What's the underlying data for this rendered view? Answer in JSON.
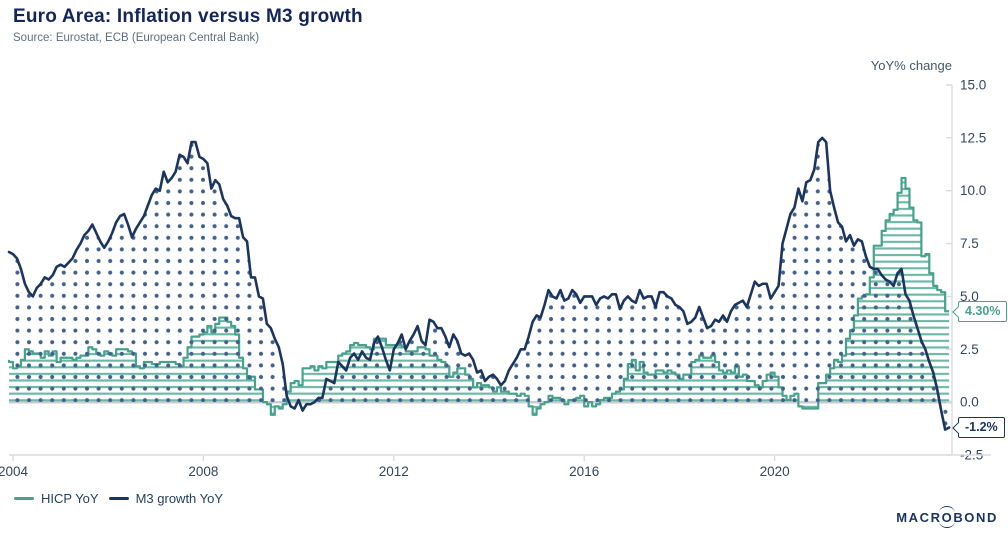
{
  "header": {
    "title": "Euro Area: Inflation versus M3 growth",
    "source": "Source: Eurostat, ECB (European Central Bank)"
  },
  "axis": {
    "unit_label": "YoY% change"
  },
  "logo": {
    "left": "MACR",
    "o": "O",
    "right": "BOND"
  },
  "colors": {
    "navy": "#1b3561",
    "navy_dots": "#44618c",
    "teal": "#47a28c",
    "teal_lines": "#6cb8a6",
    "axis_line": "#d9dcdf",
    "zero_line": "#c9ccd0",
    "tick_text": "#35465c"
  },
  "chart_data": {
    "type": "area",
    "title": "Euro Area: Inflation versus M3 growth",
    "xlabel": "",
    "ylabel": "YoY% change",
    "ylim": [
      -2.5,
      15.0
    ],
    "grid": false,
    "legend_position": "bottom-left",
    "x_start": "2003-12",
    "frequency": "monthly",
    "x_ticks": [
      {
        "label": "2004",
        "year": 2004
      },
      {
        "label": "2008",
        "year": 2008
      },
      {
        "label": "2012",
        "year": 2012
      },
      {
        "label": "2016",
        "year": 2016
      },
      {
        "label": "2020",
        "year": 2020
      }
    ],
    "y_ticks": [
      {
        "label": "15.0",
        "value": 15.0
      },
      {
        "label": "12.5",
        "value": 12.5
      },
      {
        "label": "10.0",
        "value": 10.0
      },
      {
        "label": "7.5",
        "value": 7.5
      },
      {
        "label": "5.0",
        "value": 5.0
      },
      {
        "label": "2.5",
        "value": 2.5
      },
      {
        "label": "0.0",
        "value": 0.0
      },
      {
        "label": "-2.5",
        "value": -2.5
      }
    ],
    "series": [
      {
        "name": "HICP YoY",
        "color": "#47a28c",
        "fill_pattern": "horizontal-lines",
        "pattern_color": "#6cb8a6",
        "interpolation": "step",
        "last_value_label": "4.30%",
        "values": [
          2.0,
          1.9,
          1.6,
          1.7,
          2.0,
          2.5,
          2.4,
          2.3,
          2.3,
          2.1,
          2.4,
          2.2,
          2.4,
          1.9,
          2.1,
          2.1,
          2.1,
          2.0,
          2.1,
          2.2,
          2.2,
          2.6,
          2.5,
          2.3,
          2.2,
          2.4,
          2.3,
          2.2,
          2.5,
          2.5,
          2.5,
          2.4,
          2.3,
          1.7,
          1.6,
          1.9,
          1.9,
          1.8,
          1.8,
          1.9,
          1.9,
          1.9,
          1.9,
          1.8,
          1.7,
          2.1,
          2.6,
          3.1,
          3.1,
          3.2,
          3.3,
          3.6,
          3.3,
          3.7,
          4.0,
          4.0,
          3.8,
          3.6,
          3.2,
          2.1,
          1.6,
          1.1,
          1.2,
          0.6,
          0.6,
          0.0,
          -0.1,
          -0.6,
          -0.2,
          -0.3,
          -0.1,
          0.5,
          0.9,
          1.0,
          0.8,
          1.6,
          1.6,
          1.7,
          1.5,
          1.7,
          1.6,
          1.9,
          1.9,
          1.9,
          2.2,
          2.3,
          2.4,
          2.7,
          2.8,
          2.7,
          2.7,
          2.6,
          2.5,
          3.0,
          3.0,
          3.0,
          2.7,
          2.7,
          2.7,
          2.7,
          2.6,
          2.4,
          2.4,
          2.4,
          2.6,
          2.6,
          2.5,
          2.2,
          2.2,
          2.0,
          1.9,
          1.7,
          1.2,
          1.4,
          1.6,
          1.6,
          1.3,
          1.1,
          0.7,
          0.9,
          0.8,
          0.8,
          0.7,
          0.5,
          0.7,
          0.5,
          0.5,
          0.4,
          0.4,
          0.3,
          0.4,
          0.3,
          -0.2,
          -0.6,
          -0.3,
          -0.1,
          0.0,
          0.3,
          0.2,
          0.2,
          0.1,
          -0.1,
          0.1,
          0.1,
          0.2,
          0.3,
          -0.2,
          0.0,
          -0.2,
          -0.1,
          0.1,
          0.2,
          0.2,
          0.4,
          0.5,
          0.6,
          1.1,
          1.8,
          2.0,
          1.5,
          1.9,
          1.4,
          1.3,
          1.3,
          1.5,
          1.5,
          1.4,
          1.5,
          1.4,
          1.3,
          1.1,
          1.3,
          1.3,
          1.9,
          2.0,
          2.2,
          2.1,
          2.1,
          2.2,
          1.9,
          1.5,
          1.4,
          1.5,
          1.4,
          1.7,
          1.2,
          1.3,
          1.0,
          1.0,
          0.8,
          0.7,
          1.0,
          1.3,
          1.4,
          1.2,
          0.7,
          0.3,
          0.1,
          0.3,
          0.4,
          -0.2,
          -0.3,
          -0.3,
          -0.3,
          -0.3,
          0.9,
          0.9,
          1.3,
          1.6,
          2.0,
          1.9,
          2.2,
          3.0,
          3.4,
          4.1,
          4.9,
          5.0,
          5.1,
          5.9,
          7.4,
          7.4,
          8.1,
          8.6,
          8.9,
          9.1,
          9.9,
          10.6,
          10.1,
          9.2,
          8.6,
          8.5,
          6.9,
          7.0,
          6.1,
          5.5,
          5.3,
          5.2,
          4.3
        ]
      },
      {
        "name": "M3 growth YoY",
        "color": "#1b3561",
        "fill_pattern": "dots",
        "pattern_color": "#44618c",
        "interpolation": "linear",
        "last_value_label": "-1.2%",
        "values": [
          7.1,
          7.0,
          6.8,
          6.3,
          5.6,
          5.2,
          5.0,
          5.4,
          5.6,
          5.9,
          5.8,
          6.0,
          6.4,
          6.5,
          6.4,
          6.6,
          6.8,
          7.2,
          7.5,
          7.9,
          8.1,
          8.4,
          8.0,
          7.6,
          7.3,
          7.6,
          8.0,
          8.5,
          8.8,
          8.9,
          8.4,
          7.8,
          8.2,
          8.5,
          8.8,
          9.3,
          9.8,
          10.1,
          10.0,
          10.9,
          10.4,
          10.6,
          10.9,
          11.7,
          11.6,
          11.3,
          12.3,
          12.3,
          11.6,
          11.5,
          11.3,
          10.1,
          10.5,
          10.3,
          9.6,
          9.3,
          8.8,
          8.7,
          8.7,
          7.8,
          7.6,
          5.9,
          5.9,
          5.0,
          4.9,
          3.7,
          3.5,
          3.0,
          2.6,
          1.8,
          0.3,
          -0.2,
          -0.3,
          0.1,
          -0.4,
          -0.1,
          -0.1,
          0.0,
          0.2,
          0.2,
          1.1,
          1.0,
          0.9,
          1.9,
          1.7,
          1.5,
          2.1,
          2.3,
          2.0,
          2.4,
          2.1,
          2.0,
          2.8,
          3.1,
          2.6,
          2.0,
          1.5,
          2.5,
          2.8,
          3.2,
          2.5,
          2.9,
          3.2,
          3.6,
          2.9,
          2.7,
          3.9,
          3.8,
          3.5,
          3.5,
          3.1,
          2.6,
          3.2,
          2.9,
          2.3,
          2.2,
          2.3,
          2.0,
          1.4,
          1.5,
          1.0,
          1.2,
          1.3,
          1.1,
          0.8,
          1.0,
          1.5,
          1.8,
          2.1,
          2.5,
          2.5,
          3.1,
          3.8,
          4.1,
          4.0,
          4.6,
          5.3,
          5.0,
          4.9,
          5.3,
          4.8,
          4.9,
          5.3,
          5.1,
          4.7,
          5.0,
          5.0,
          5.0,
          4.6,
          4.9,
          5.0,
          4.9,
          5.1,
          5.1,
          4.4,
          4.8,
          5.0,
          4.8,
          4.7,
          5.3,
          4.9,
          5.0,
          5.0,
          4.5,
          5.2,
          5.2,
          5.0,
          4.9,
          4.6,
          4.5,
          4.3,
          3.7,
          3.8,
          4.0,
          4.5,
          4.0,
          3.5,
          3.6,
          3.9,
          3.8,
          4.1,
          3.8,
          4.3,
          4.6,
          4.7,
          4.8,
          4.5,
          5.1,
          5.7,
          5.5,
          5.6,
          5.6,
          4.9,
          5.2,
          5.5,
          7.5,
          8.2,
          8.9,
          9.2,
          10.1,
          9.5,
          10.4,
          10.5,
          11.0,
          12.3,
          12.5,
          12.3,
          10.0,
          9.2,
          8.5,
          8.3,
          7.6,
          7.9,
          7.4,
          7.7,
          7.6,
          6.9,
          6.4,
          6.3,
          6.3,
          6.0,
          5.8,
          5.7,
          5.5,
          6.1,
          6.3,
          5.1,
          4.8,
          4.1,
          3.5,
          2.9,
          2.5,
          1.9,
          1.4,
          0.6,
          -0.4,
          -1.3,
          -1.2
        ]
      }
    ]
  }
}
